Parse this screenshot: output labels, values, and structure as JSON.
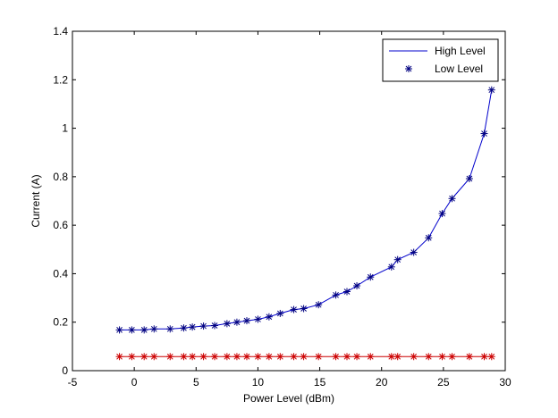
{
  "chart_data": {
    "type": "line",
    "title": "",
    "xlabel": "Power Level (dBm)",
    "ylabel": "Current (A)",
    "xlim": [
      -5,
      30
    ],
    "ylim": [
      0,
      1.4
    ],
    "xticks": [
      -5,
      0,
      5,
      10,
      15,
      20,
      25,
      30
    ],
    "yticks": [
      0,
      0.2,
      0.4,
      0.6,
      0.8,
      1,
      1.2,
      1.4
    ],
    "xtick_labels": [
      "-5",
      "0",
      "5",
      "10",
      "15",
      "20",
      "25",
      "30"
    ],
    "ytick_labels": [
      "0",
      "0.2",
      "0.4",
      "0.6",
      "0.8",
      "1",
      "1.2",
      "1.4"
    ],
    "grid": false,
    "legend_position": "top-right",
    "series": [
      {
        "name": "High Level",
        "color": "#0000cc",
        "marker_color": "#000080",
        "style": "line-with-star-markers",
        "x": [
          -1.2,
          -0.2,
          0.8,
          1.6,
          2.9,
          4,
          4.7,
          5.6,
          6.5,
          7.5,
          8.3,
          9.1,
          10,
          10.9,
          11.8,
          12.9,
          13.7,
          14.9,
          16.3,
          17.2,
          18,
          19.1,
          20.8,
          21.3,
          22.6,
          23.8,
          24.9,
          25.7,
          27.1,
          28.3,
          28.9
        ],
        "y": [
          0.168,
          0.168,
          0.168,
          0.172,
          0.172,
          0.176,
          0.18,
          0.184,
          0.186,
          0.194,
          0.2,
          0.206,
          0.212,
          0.222,
          0.236,
          0.252,
          0.256,
          0.272,
          0.312,
          0.326,
          0.35,
          0.386,
          0.428,
          0.458,
          0.488,
          0.548,
          0.648,
          0.71,
          0.792,
          0.978,
          1.158
        ]
      },
      {
        "name": "Low Level",
        "color": "#cc0000",
        "style": "line-with-star-markers",
        "x": [
          -1.2,
          -0.2,
          0.8,
          1.6,
          2.9,
          4,
          4.7,
          5.6,
          6.5,
          7.5,
          8.3,
          9.1,
          10,
          10.9,
          11.8,
          12.9,
          13.7,
          14.9,
          16.3,
          17.2,
          18,
          19.1,
          20.8,
          21.3,
          22.6,
          23.8,
          24.9,
          25.7,
          27.1,
          28.3,
          28.9
        ],
        "y": [
          0.058,
          0.058,
          0.058,
          0.058,
          0.058,
          0.058,
          0.058,
          0.058,
          0.058,
          0.058,
          0.058,
          0.058,
          0.058,
          0.058,
          0.058,
          0.058,
          0.058,
          0.058,
          0.058,
          0.058,
          0.058,
          0.058,
          0.058,
          0.058,
          0.058,
          0.058,
          0.058,
          0.058,
          0.058,
          0.058,
          0.058
        ]
      }
    ],
    "legend": [
      {
        "label": "High Level",
        "symbol": "line",
        "color": "#0000cc"
      },
      {
        "label": "Low Level",
        "symbol": "star",
        "color": "#000080"
      }
    ]
  }
}
